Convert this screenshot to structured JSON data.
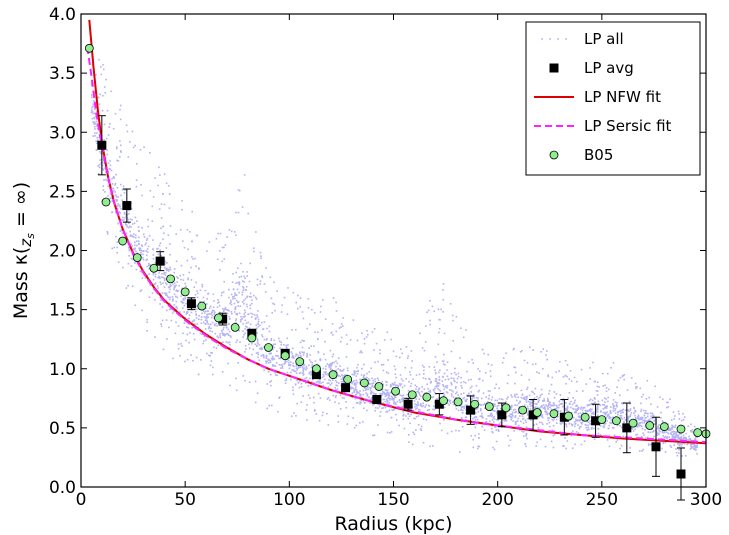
{
  "chart_data": {
    "type": "scatter",
    "xlabel": "Radius (kpc)",
    "ylabel_prefix": "Mass κ(",
    "ylabel_sub": "z",
    "ylabel_subsub": "s",
    "ylabel_suffix": " = ∞)",
    "xlim": [
      0,
      300
    ],
    "ylim": [
      0.0,
      4.0
    ],
    "xticks": [
      0,
      50,
      100,
      150,
      200,
      250,
      300
    ],
    "yticks": [
      0.0,
      0.5,
      1.0,
      1.5,
      2.0,
      2.5,
      3.0,
      3.5,
      4.0
    ],
    "xtick_labels": [
      "0",
      "50",
      "100",
      "150",
      "200",
      "250",
      "300"
    ],
    "ytick_labels": [
      "0.0",
      "0.5",
      "1.0",
      "1.5",
      "2.0",
      "2.5",
      "3.0",
      "3.5",
      "4.0"
    ],
    "grid": false,
    "legend_position": "top-right",
    "legend": [
      "LP all",
      "LP avg",
      "LP NFW fit",
      "LP Sersic fit",
      "B05"
    ],
    "colors": {
      "lp_all": "#b3b3f5",
      "lp_avg": "#000000",
      "nfw": "#dd0000",
      "sersic": "#ff22ff",
      "b05_fill": "#90ee90",
      "b05_edge": "#000000"
    },
    "lp_all_envelope": {
      "x": [
        5,
        10,
        15,
        20,
        25,
        30,
        35,
        40,
        45,
        50,
        60,
        70,
        75,
        80,
        85,
        90,
        100,
        110,
        120,
        130,
        140,
        150,
        160,
        170,
        175,
        180,
        190,
        200,
        210,
        220,
        230,
        240,
        250,
        260,
        270,
        280,
        290,
        296
      ],
      "upper": [
        3.7,
        3.6,
        3.4,
        3.2,
        3.0,
        2.9,
        2.8,
        2.65,
        2.5,
        2.4,
        2.2,
        2.2,
        2.8,
        2.6,
        2.1,
        1.8,
        1.7,
        1.6,
        1.65,
        1.45,
        1.4,
        1.3,
        1.25,
        1.7,
        1.78,
        1.5,
        1.2,
        1.1,
        1.2,
        1.2,
        1.1,
        1.0,
        1.1,
        1.05,
        0.95,
        0.8,
        0.6,
        0.5
      ],
      "lower": [
        3.0,
        2.3,
        1.9,
        1.7,
        1.5,
        1.35,
        1.25,
        1.15,
        1.05,
        1.0,
        0.9,
        0.85,
        0.8,
        0.75,
        0.7,
        0.65,
        0.6,
        0.55,
        0.5,
        0.48,
        0.42,
        0.38,
        0.35,
        0.3,
        0.28,
        0.27,
        0.3,
        0.3,
        0.3,
        0.3,
        0.32,
        0.33,
        0.33,
        0.32,
        0.3,
        0.28,
        0.25,
        0.25
      ]
    },
    "lp_avg": {
      "x": [
        10,
        22,
        38,
        53,
        68,
        82,
        98,
        113,
        127,
        142,
        157,
        172,
        187,
        202,
        217,
        232,
        247,
        262,
        276,
        288
      ],
      "y": [
        2.89,
        2.38,
        1.91,
        1.55,
        1.42,
        1.3,
        1.13,
        0.95,
        0.84,
        0.74,
        0.7,
        0.7,
        0.65,
        0.61,
        0.61,
        0.59,
        0.56,
        0.5,
        0.34,
        0.11
      ],
      "err": [
        0.25,
        0.14,
        0.08,
        0.05,
        0.05,
        0.02,
        0.02,
        0.02,
        0.02,
        0.02,
        0.05,
        0.09,
        0.12,
        0.1,
        0.13,
        0.15,
        0.14,
        0.21,
        0.25,
        0.22
      ]
    },
    "nfw_fit": {
      "x": [
        4,
        6,
        8,
        10,
        13,
        16,
        20,
        25,
        30,
        35,
        40,
        50,
        60,
        70,
        80,
        90,
        100,
        120,
        140,
        160,
        180,
        200,
        220,
        240,
        260,
        280,
        300
      ],
      "y": [
        3.95,
        3.55,
        3.2,
        2.92,
        2.62,
        2.4,
        2.18,
        1.98,
        1.82,
        1.69,
        1.58,
        1.42,
        1.29,
        1.18,
        1.08,
        1.0,
        0.94,
        0.82,
        0.72,
        0.63,
        0.57,
        0.52,
        0.47,
        0.44,
        0.41,
        0.39,
        0.37
      ]
    },
    "sersic_fit": {
      "x": [
        3,
        5,
        7,
        9,
        12,
        15,
        20,
        25,
        30,
        35,
        40,
        50,
        60,
        70,
        80,
        90,
        100,
        120,
        140,
        160,
        180,
        200,
        220,
        240,
        260,
        280,
        300
      ],
      "y": [
        3.72,
        3.48,
        3.2,
        2.98,
        2.7,
        2.46,
        2.18,
        1.97,
        1.81,
        1.68,
        1.57,
        1.41,
        1.28,
        1.17,
        1.08,
        1.0,
        0.94,
        0.82,
        0.72,
        0.64,
        0.57,
        0.52,
        0.48,
        0.44,
        0.42,
        0.4,
        0.38
      ]
    },
    "b05": {
      "x": [
        4,
        12,
        20,
        27,
        35,
        43,
        50,
        58,
        66,
        74,
        82,
        90,
        98,
        105,
        113,
        121,
        128,
        136,
        143,
        151,
        159,
        166,
        174,
        181,
        189,
        196,
        204,
        212,
        219,
        227,
        234,
        242,
        250,
        257,
        265,
        273,
        280,
        288,
        296,
        300
      ],
      "y": [
        3.71,
        2.41,
        2.08,
        1.94,
        1.85,
        1.76,
        1.65,
        1.53,
        1.43,
        1.35,
        1.26,
        1.18,
        1.11,
        1.06,
        1.0,
        0.95,
        0.91,
        0.88,
        0.85,
        0.81,
        0.78,
        0.76,
        0.73,
        0.72,
        0.7,
        0.68,
        0.67,
        0.65,
        0.63,
        0.62,
        0.6,
        0.59,
        0.57,
        0.56,
        0.54,
        0.52,
        0.51,
        0.49,
        0.46,
        0.45
      ]
    }
  }
}
